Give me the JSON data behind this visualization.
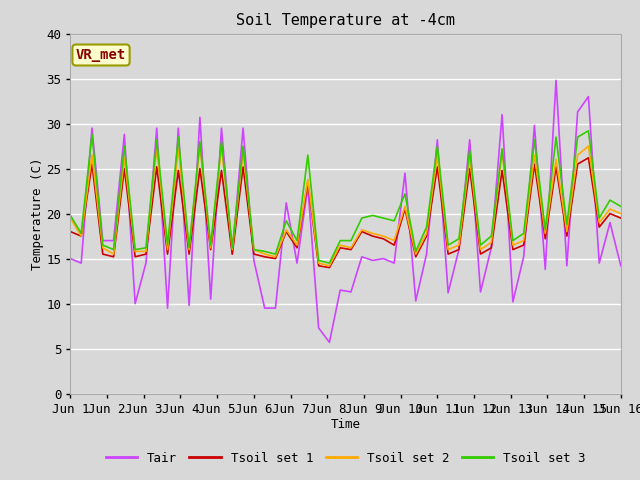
{
  "title": "Soil Temperature at -4cm",
  "xlabel": "Time",
  "ylabel": "Temperature (C)",
  "ylim": [
    0,
    40
  ],
  "xlim": [
    0,
    15
  ],
  "xtick_labels": [
    "Jun 1",
    "Jun 2",
    "Jun 3",
    "Jun 4",
    "Jun 5",
    "Jun 6",
    "Jun 7",
    "Jun 8",
    "Jun 9",
    "Jun 10",
    "Jun 11",
    "Jun 12",
    "Jun 13",
    "Jun 14",
    "Jun 15",
    "Jun 16"
  ],
  "xtick_positions": [
    0,
    1,
    2,
    3,
    4,
    5,
    6,
    7,
    8,
    9,
    10,
    11,
    12,
    13,
    14,
    15
  ],
  "ytick_positions": [
    0,
    5,
    10,
    15,
    20,
    25,
    30,
    35,
    40
  ],
  "legend_labels": [
    "Tair",
    "Tsoil set 1",
    "Tsoil set 2",
    "Tsoil set 3"
  ],
  "line_colors": [
    "#cc44ff",
    "#cc0000",
    "#ffaa00",
    "#33cc00"
  ],
  "background_color": "#d8d8d8",
  "plot_bg_color": "#d8d8d8",
  "annotation_text": "VR_met",
  "annotation_color": "#880000",
  "annotation_bg": "#ffffcc",
  "annotation_border": "#999900",
  "grid_color": "#ffffff",
  "title_fontsize": 11,
  "axis_fontsize": 9,
  "legend_fontsize": 9,
  "tair": [
    15.0,
    14.5,
    29.5,
    17.0,
    17.0,
    28.8,
    10.0,
    14.5,
    29.5,
    9.5,
    29.5,
    9.8,
    30.7,
    10.5,
    29.5,
    15.5,
    29.5,
    14.8,
    9.5,
    9.5,
    21.2,
    14.5,
    23.0,
    7.3,
    5.7,
    11.5,
    11.3,
    15.2,
    14.8,
    15.0,
    14.5,
    24.5,
    10.3,
    15.5,
    28.2,
    11.2,
    16.0,
    28.2,
    11.3,
    16.2,
    31.0,
    10.2,
    15.2,
    29.8,
    13.8,
    34.8,
    14.2,
    31.3,
    33.0,
    14.5,
    19.0,
    14.2
  ],
  "tsoil1": [
    18.0,
    17.5,
    25.5,
    15.5,
    15.2,
    25.0,
    15.2,
    15.5,
    25.2,
    15.5,
    24.8,
    15.5,
    25.0,
    16.0,
    24.8,
    15.5,
    25.2,
    15.5,
    15.2,
    15.0,
    18.0,
    16.2,
    23.5,
    14.2,
    14.0,
    16.2,
    16.0,
    18.0,
    17.5,
    17.2,
    16.5,
    20.5,
    15.2,
    17.5,
    25.2,
    15.5,
    16.0,
    25.0,
    15.5,
    16.2,
    24.8,
    16.0,
    16.5,
    25.5,
    17.2,
    25.2,
    17.5,
    25.5,
    26.2,
    18.5,
    20.0,
    19.5
  ],
  "tsoil2": [
    19.5,
    17.5,
    26.5,
    16.2,
    15.5,
    26.2,
    15.8,
    15.8,
    27.2,
    16.0,
    27.2,
    16.0,
    27.5,
    16.2,
    27.5,
    16.0,
    26.8,
    16.0,
    15.5,
    15.2,
    18.2,
    16.5,
    23.8,
    14.5,
    14.2,
    16.5,
    16.2,
    18.2,
    17.8,
    17.5,
    17.0,
    20.8,
    15.5,
    17.8,
    26.5,
    16.0,
    16.5,
    26.2,
    16.0,
    16.8,
    26.8,
    16.5,
    17.0,
    26.5,
    17.8,
    26.0,
    18.0,
    26.5,
    27.5,
    19.0,
    20.5,
    20.0
  ],
  "tsoil3": [
    19.8,
    17.8,
    28.8,
    16.5,
    16.0,
    27.5,
    16.0,
    16.2,
    28.2,
    16.5,
    28.5,
    16.2,
    28.0,
    16.5,
    28.0,
    16.2,
    27.5,
    16.0,
    15.8,
    15.5,
    19.2,
    17.0,
    26.5,
    14.8,
    14.5,
    17.0,
    17.0,
    19.5,
    19.8,
    19.5,
    19.2,
    22.2,
    15.8,
    18.5,
    27.5,
    16.5,
    17.2,
    27.0,
    16.5,
    17.5,
    27.2,
    17.0,
    17.8,
    28.2,
    18.2,
    28.5,
    18.8,
    28.5,
    29.2,
    19.5,
    21.5,
    20.8
  ]
}
